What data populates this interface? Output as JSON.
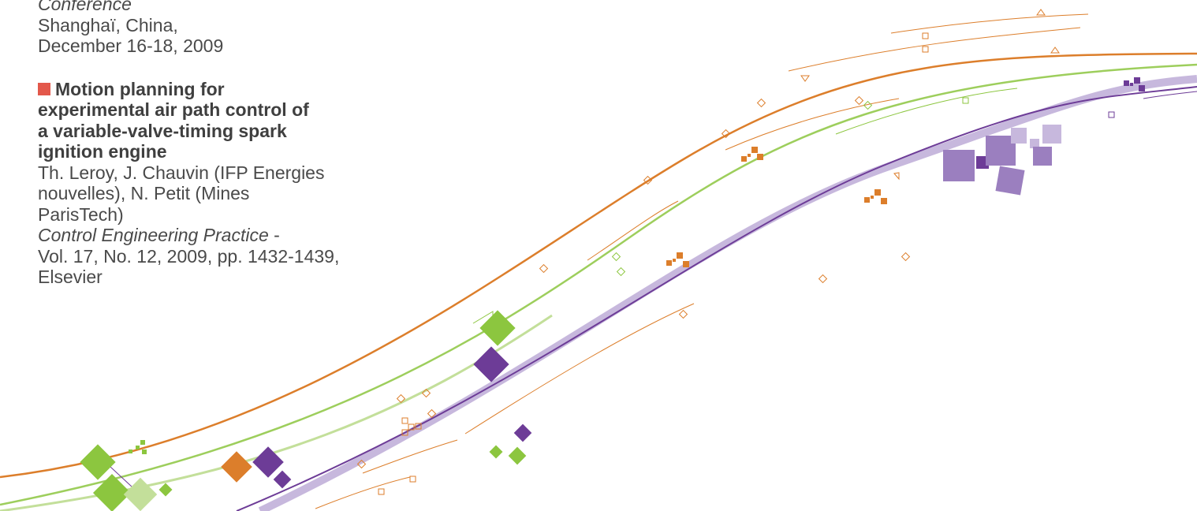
{
  "previous_entry": {
    "venue_tail": "Conference",
    "location": "Shanghaï, China,",
    "dates": "December 16-18, 2009"
  },
  "article": {
    "title_lines": [
      "Motion planning for",
      "experimental air path control of",
      "a variable-valve-timing spark",
      "ignition engine"
    ],
    "author_lines": [
      "Th. Leroy, J. Chauvin (IFP Energies",
      "nouvelles), N. Petit (Mines",
      "ParisTech)"
    ],
    "journal": "Control Engineering Practice",
    "journal_sep": " -",
    "details_lines": [
      "Vol. 17, No. 12, 2009, pp. 1432-1439,",
      "Elsevier"
    ]
  },
  "colors": {
    "text": "#4a4a4a",
    "bullet": "#e3584b",
    "orange": "#dc7e2b",
    "green": "#8cc63f",
    "light_green": "#c3df9a",
    "purple": "#6d3c97",
    "lavender": "#b9a7d2"
  }
}
